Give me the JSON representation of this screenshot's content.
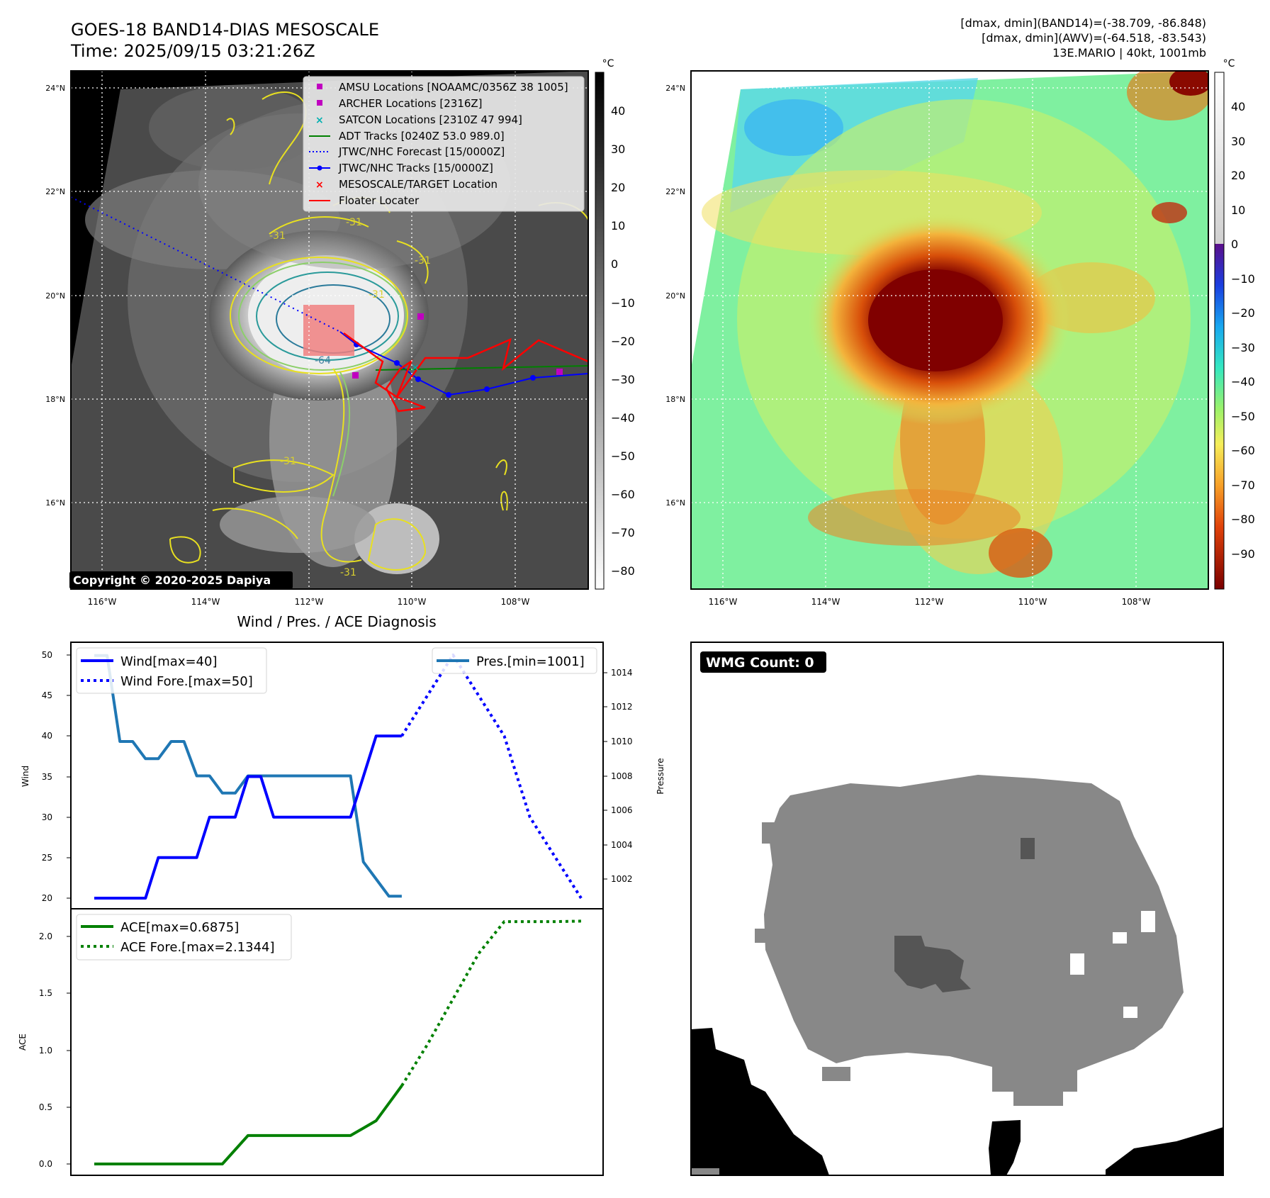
{
  "header": {
    "title": "GOES-18 BAND14-DIAS MESOSCALE",
    "time": "Time: 2025/09/15 03:21:26Z",
    "stats_band14": "[dmax, dmin](BAND14)=(-38.709, -86.848)",
    "stats_awv": "[dmax, dmin](AWV)=(-64.518, -83.543)",
    "storm": "13E.MARIO | 40kt, 1001mb"
  },
  "map": {
    "lat_ticks": [
      "24°N",
      "22°N",
      "20°N",
      "18°N",
      "16°N"
    ],
    "lon_ticks": [
      "116°W",
      "114°W",
      "112°W",
      "110°W",
      "108°W"
    ],
    "copyright": "Copyright © 2020-2025 Dapiya",
    "contour_labels": [
      "-31",
      "-31",
      "-31",
      "-31",
      "-31",
      "-64",
      "-31"
    ],
    "legend": [
      {
        "label": "AMSU Locations [NOAAMC/0356Z 38 1005]",
        "marker": "square",
        "color": "#c000c0"
      },
      {
        "label": "ARCHER Locations [2316Z]",
        "marker": "square",
        "color": "#c000c0"
      },
      {
        "label": "SATCON Locations [2310Z 47 994]",
        "marker": "x",
        "color": "#00b0b0"
      },
      {
        "label": "ADT Tracks [0240Z 53.0 989.0]",
        "marker": "line",
        "color": "#008000"
      },
      {
        "label": "JTWC/NHC Forecast [15/0000Z]",
        "marker": "dotted",
        "color": "#0000ff"
      },
      {
        "label": "JTWC/NHC Tracks [15/0000Z]",
        "marker": "line-dot",
        "color": "#0000ff"
      },
      {
        "label": "MESOSCALE/TARGET Location",
        "marker": "x",
        "color": "#ff0000"
      },
      {
        "label": "Floater Locater",
        "marker": "line",
        "color": "#ff0000"
      }
    ],
    "colorbar_gray": {
      "unit": "°C",
      "ticks": [
        "40",
        "30",
        "20",
        "10",
        "0",
        "−10",
        "−20",
        "−30",
        "−40",
        "−50",
        "−60",
        "−70",
        "−80"
      ]
    },
    "colorbar_color": {
      "unit": "°C",
      "ticks": [
        "40",
        "30",
        "20",
        "10",
        "0",
        "−10",
        "−20",
        "−30",
        "−40",
        "−50",
        "−60",
        "−70",
        "−80",
        "−90"
      ]
    }
  },
  "wind_panel": {
    "title": "Wind / Pres. / ACE Diagnosis",
    "ylabel_left": "Wind",
    "ylabel_right": "Pressure",
    "wind_ticks": [
      "50",
      "45",
      "40",
      "35",
      "30",
      "25",
      "20"
    ],
    "pres_ticks": [
      "1014",
      "1012",
      "1010",
      "1008",
      "1006",
      "1004",
      "1002"
    ],
    "legend_left": [
      "Wind[max=40]",
      "Wind Fore.[max=50]"
    ],
    "legend_right": [
      "Pres.[min=1001]"
    ]
  },
  "ace_panel": {
    "ylabel": "ACE",
    "ticks": [
      "2.0",
      "1.5",
      "1.0",
      "0.5",
      "0.0"
    ],
    "legend": [
      "ACE[max=0.6875]",
      "ACE Fore.[max=2.1344]"
    ]
  },
  "wmg_panel": {
    "badge": "WMG Count: 0"
  },
  "chart_data": [
    {
      "type": "line",
      "title": "Wind / Pres. / ACE Diagnosis",
      "ylabel": "Wind",
      "ylim": [
        19.5,
        51
      ],
      "x": [
        0,
        2,
        4,
        6,
        8,
        10,
        12,
        14,
        16,
        18,
        20,
        22,
        24
      ],
      "series": [
        {
          "name": "Wind[max=40]",
          "color": "#0000ff",
          "style": "solid",
          "x": [
            0,
            1,
            2,
            3,
            4,
            5,
            6,
            7,
            8,
            9,
            10,
            11,
            12,
            13,
            14,
            15,
            16,
            17,
            18,
            19,
            20,
            21,
            22,
            23,
            24
          ],
          "values": [
            20,
            20,
            20,
            20,
            20,
            25,
            25,
            25,
            25,
            30,
            30,
            30,
            35,
            35,
            30,
            30,
            30,
            30,
            30,
            30,
            30,
            35,
            40,
            40,
            40
          ]
        },
        {
          "name": "Wind Fore.[max=50]",
          "color": "#0000ff",
          "style": "dotted",
          "x": [
            24,
            26,
            28,
            30,
            32,
            34,
            36,
            38
          ],
          "values": [
            40,
            45,
            50,
            45,
            40,
            30,
            25,
            20
          ]
        }
      ]
    },
    {
      "type": "line",
      "ylabel": "Pressure",
      "ylim": [
        1000.5,
        1015.2
      ],
      "series": [
        {
          "name": "Pres.[min=1001]",
          "color": "#1f77b4",
          "style": "solid",
          "x": [
            0,
            1,
            2,
            3,
            4,
            5,
            6,
            7,
            8,
            9,
            10,
            11,
            12,
            13,
            14,
            15,
            16,
            17,
            18,
            19,
            20,
            21,
            22,
            23,
            24
          ],
          "values": [
            1015,
            1015,
            1010,
            1010,
            1009,
            1009,
            1010,
            1010,
            1008,
            1008,
            1007,
            1007,
            1008,
            1008,
            1008,
            1008,
            1008,
            1008,
            1008,
            1008,
            1008,
            1003,
            1002,
            1001,
            1001
          ]
        }
      ]
    },
    {
      "type": "line",
      "ylabel": "ACE",
      "ylim": [
        -0.05,
        2.25
      ],
      "series": [
        {
          "name": "ACE[max=0.6875]",
          "color": "#008000",
          "style": "solid",
          "x": [
            0,
            2,
            4,
            6,
            8,
            10,
            12,
            14,
            16,
            18,
            20,
            22,
            24
          ],
          "values": [
            0,
            0,
            0,
            0,
            0,
            0,
            0.25,
            0.25,
            0.25,
            0.25,
            0.25,
            0.38,
            0.6875
          ]
        },
        {
          "name": "ACE Fore.[max=2.1344]",
          "color": "#008000",
          "style": "dotted",
          "x": [
            24,
            26,
            28,
            30,
            32,
            34,
            36,
            38
          ],
          "values": [
            0.6875,
            1.05,
            1.45,
            1.85,
            2.13,
            2.13,
            2.13,
            2.1344
          ]
        }
      ]
    }
  ]
}
